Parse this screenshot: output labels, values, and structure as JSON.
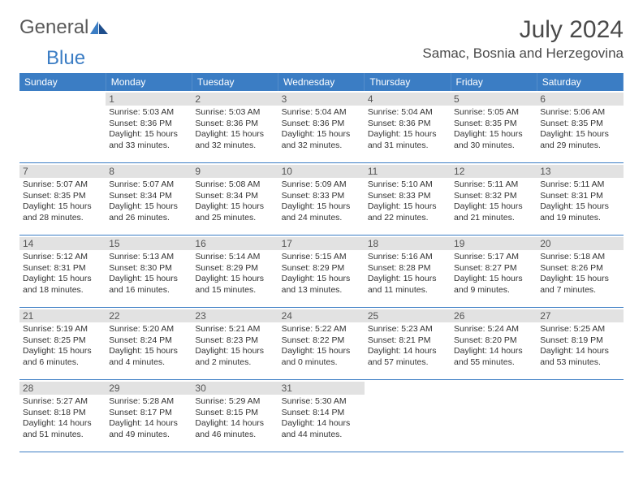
{
  "brand": {
    "part1": "General",
    "part2": "Blue"
  },
  "title": "July 2024",
  "location": "Samac, Bosnia and Herzegovina",
  "colors": {
    "header_bg": "#3b7dc4",
    "header_text": "#ffffff",
    "daynum_bg": "#e2e2e2",
    "rule": "#3b7dc4",
    "text": "#333333",
    "title_text": "#4a4a4a"
  },
  "weekdays": [
    "Sunday",
    "Monday",
    "Tuesday",
    "Wednesday",
    "Thursday",
    "Friday",
    "Saturday"
  ],
  "weeks": [
    [
      null,
      {
        "n": "1",
        "sr": "Sunrise: 5:03 AM",
        "ss": "Sunset: 8:36 PM",
        "dl": "Daylight: 15 hours and 33 minutes."
      },
      {
        "n": "2",
        "sr": "Sunrise: 5:03 AM",
        "ss": "Sunset: 8:36 PM",
        "dl": "Daylight: 15 hours and 32 minutes."
      },
      {
        "n": "3",
        "sr": "Sunrise: 5:04 AM",
        "ss": "Sunset: 8:36 PM",
        "dl": "Daylight: 15 hours and 32 minutes."
      },
      {
        "n": "4",
        "sr": "Sunrise: 5:04 AM",
        "ss": "Sunset: 8:36 PM",
        "dl": "Daylight: 15 hours and 31 minutes."
      },
      {
        "n": "5",
        "sr": "Sunrise: 5:05 AM",
        "ss": "Sunset: 8:35 PM",
        "dl": "Daylight: 15 hours and 30 minutes."
      },
      {
        "n": "6",
        "sr": "Sunrise: 5:06 AM",
        "ss": "Sunset: 8:35 PM",
        "dl": "Daylight: 15 hours and 29 minutes."
      }
    ],
    [
      {
        "n": "7",
        "sr": "Sunrise: 5:07 AM",
        "ss": "Sunset: 8:35 PM",
        "dl": "Daylight: 15 hours and 28 minutes."
      },
      {
        "n": "8",
        "sr": "Sunrise: 5:07 AM",
        "ss": "Sunset: 8:34 PM",
        "dl": "Daylight: 15 hours and 26 minutes."
      },
      {
        "n": "9",
        "sr": "Sunrise: 5:08 AM",
        "ss": "Sunset: 8:34 PM",
        "dl": "Daylight: 15 hours and 25 minutes."
      },
      {
        "n": "10",
        "sr": "Sunrise: 5:09 AM",
        "ss": "Sunset: 8:33 PM",
        "dl": "Daylight: 15 hours and 24 minutes."
      },
      {
        "n": "11",
        "sr": "Sunrise: 5:10 AM",
        "ss": "Sunset: 8:33 PM",
        "dl": "Daylight: 15 hours and 22 minutes."
      },
      {
        "n": "12",
        "sr": "Sunrise: 5:11 AM",
        "ss": "Sunset: 8:32 PM",
        "dl": "Daylight: 15 hours and 21 minutes."
      },
      {
        "n": "13",
        "sr": "Sunrise: 5:11 AM",
        "ss": "Sunset: 8:31 PM",
        "dl": "Daylight: 15 hours and 19 minutes."
      }
    ],
    [
      {
        "n": "14",
        "sr": "Sunrise: 5:12 AM",
        "ss": "Sunset: 8:31 PM",
        "dl": "Daylight: 15 hours and 18 minutes."
      },
      {
        "n": "15",
        "sr": "Sunrise: 5:13 AM",
        "ss": "Sunset: 8:30 PM",
        "dl": "Daylight: 15 hours and 16 minutes."
      },
      {
        "n": "16",
        "sr": "Sunrise: 5:14 AM",
        "ss": "Sunset: 8:29 PM",
        "dl": "Daylight: 15 hours and 15 minutes."
      },
      {
        "n": "17",
        "sr": "Sunrise: 5:15 AM",
        "ss": "Sunset: 8:29 PM",
        "dl": "Daylight: 15 hours and 13 minutes."
      },
      {
        "n": "18",
        "sr": "Sunrise: 5:16 AM",
        "ss": "Sunset: 8:28 PM",
        "dl": "Daylight: 15 hours and 11 minutes."
      },
      {
        "n": "19",
        "sr": "Sunrise: 5:17 AM",
        "ss": "Sunset: 8:27 PM",
        "dl": "Daylight: 15 hours and 9 minutes."
      },
      {
        "n": "20",
        "sr": "Sunrise: 5:18 AM",
        "ss": "Sunset: 8:26 PM",
        "dl": "Daylight: 15 hours and 7 minutes."
      }
    ],
    [
      {
        "n": "21",
        "sr": "Sunrise: 5:19 AM",
        "ss": "Sunset: 8:25 PM",
        "dl": "Daylight: 15 hours and 6 minutes."
      },
      {
        "n": "22",
        "sr": "Sunrise: 5:20 AM",
        "ss": "Sunset: 8:24 PM",
        "dl": "Daylight: 15 hours and 4 minutes."
      },
      {
        "n": "23",
        "sr": "Sunrise: 5:21 AM",
        "ss": "Sunset: 8:23 PM",
        "dl": "Daylight: 15 hours and 2 minutes."
      },
      {
        "n": "24",
        "sr": "Sunrise: 5:22 AM",
        "ss": "Sunset: 8:22 PM",
        "dl": "Daylight: 15 hours and 0 minutes."
      },
      {
        "n": "25",
        "sr": "Sunrise: 5:23 AM",
        "ss": "Sunset: 8:21 PM",
        "dl": "Daylight: 14 hours and 57 minutes."
      },
      {
        "n": "26",
        "sr": "Sunrise: 5:24 AM",
        "ss": "Sunset: 8:20 PM",
        "dl": "Daylight: 14 hours and 55 minutes."
      },
      {
        "n": "27",
        "sr": "Sunrise: 5:25 AM",
        "ss": "Sunset: 8:19 PM",
        "dl": "Daylight: 14 hours and 53 minutes."
      }
    ],
    [
      {
        "n": "28",
        "sr": "Sunrise: 5:27 AM",
        "ss": "Sunset: 8:18 PM",
        "dl": "Daylight: 14 hours and 51 minutes."
      },
      {
        "n": "29",
        "sr": "Sunrise: 5:28 AM",
        "ss": "Sunset: 8:17 PM",
        "dl": "Daylight: 14 hours and 49 minutes."
      },
      {
        "n": "30",
        "sr": "Sunrise: 5:29 AM",
        "ss": "Sunset: 8:15 PM",
        "dl": "Daylight: 14 hours and 46 minutes."
      },
      {
        "n": "31",
        "sr": "Sunrise: 5:30 AM",
        "ss": "Sunset: 8:14 PM",
        "dl": "Daylight: 14 hours and 44 minutes."
      },
      null,
      null,
      null
    ]
  ]
}
